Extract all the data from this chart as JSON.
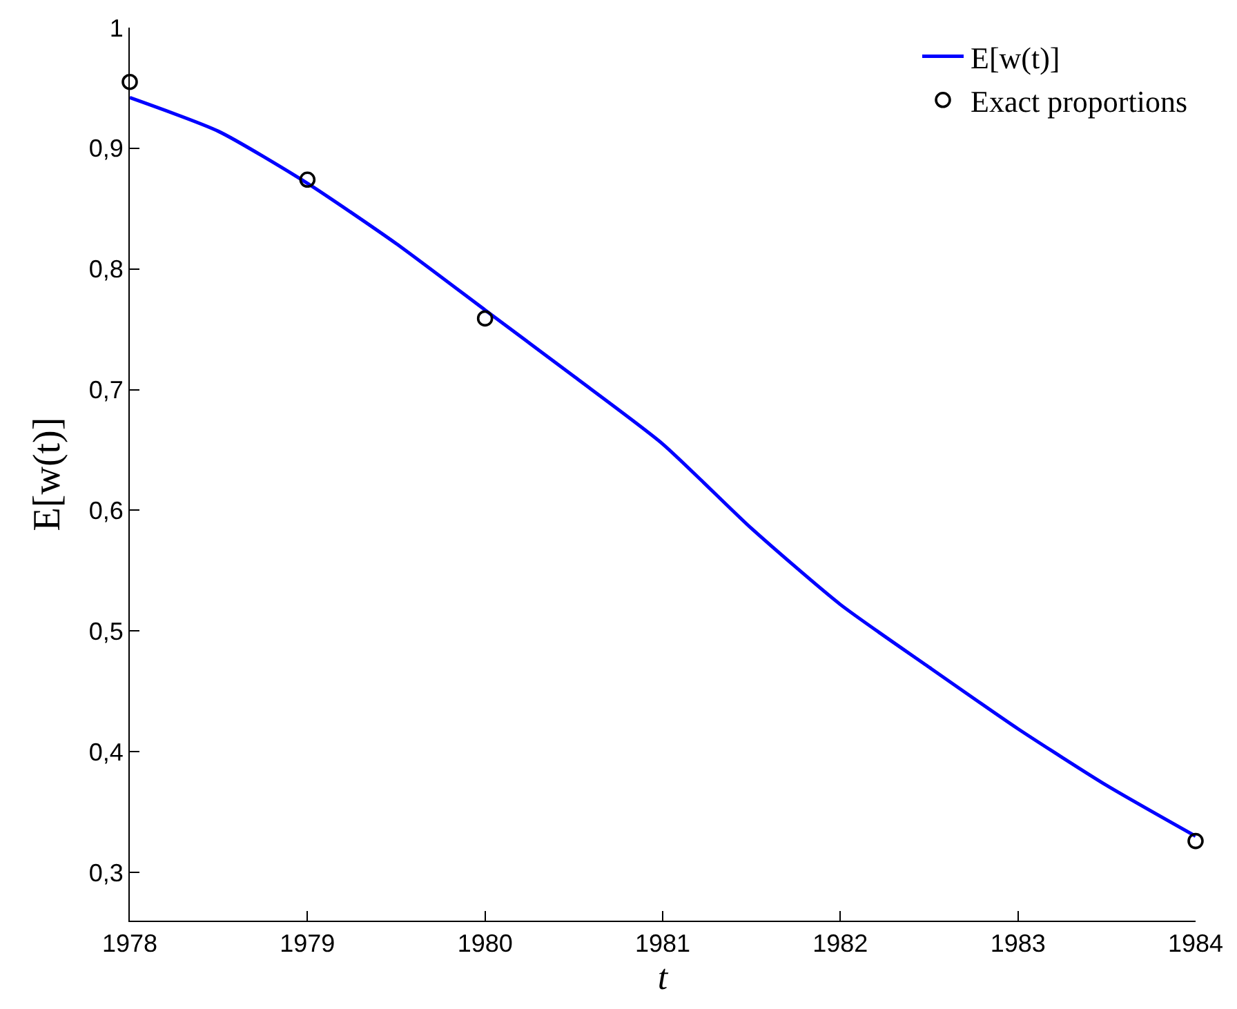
{
  "chart_data": {
    "type": "line",
    "xlabel": "t",
    "ylabel": "E[w(t)]",
    "xlim": [
      1978,
      1984
    ],
    "xticks": [
      1978,
      1979,
      1980,
      1981,
      1982,
      1983,
      1984
    ],
    "ylim": [
      0.26,
      1
    ],
    "yticks": [
      {
        "value": 0.3,
        "label": "0,3"
      },
      {
        "value": 0.4,
        "label": "0,4"
      },
      {
        "value": 0.5,
        "label": "0,5"
      },
      {
        "value": 0.6,
        "label": "0,6"
      },
      {
        "value": 0.7,
        "label": "0,7"
      },
      {
        "value": 0.8,
        "label": "0,8"
      },
      {
        "value": 0.9,
        "label": "0,9"
      },
      1
    ],
    "legend": "top right",
    "series": [
      {
        "name": "E[w(t)]",
        "color": "#0000ff",
        "marker": "none",
        "line_style": "solid",
        "x": [
          1978,
          1978.5,
          1979,
          1979.5,
          1980,
          1980.5,
          1981,
          1981.5,
          1982,
          1982.5,
          1983,
          1983.5,
          1984
        ],
        "values": [
          0.942,
          0.914,
          0.871,
          0.821,
          0.766,
          0.711,
          0.655,
          0.585,
          0.522,
          0.47,
          0.419,
          0.372,
          0.33
        ]
      },
      {
        "name": "Exact proportions",
        "type": "scatter",
        "color": "#000000",
        "marker": "circle",
        "x": [
          1978,
          1979,
          1980,
          1984
        ],
        "values": [
          0.955,
          0.874,
          0.759,
          0.326
        ]
      }
    ]
  }
}
